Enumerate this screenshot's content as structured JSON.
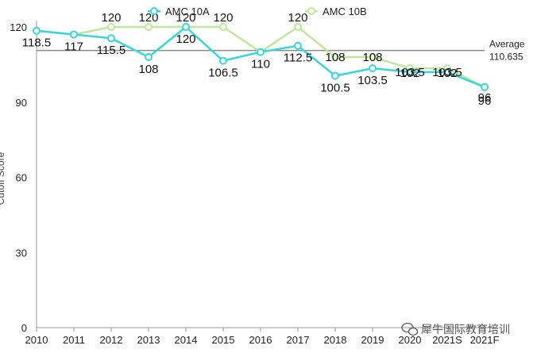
{
  "chart_data": {
    "type": "line",
    "categories": [
      "2010",
      "2011",
      "2012",
      "2013",
      "2014",
      "2015",
      "2016",
      "2017",
      "2018",
      "2019",
      "2020",
      "2021S",
      "2021F"
    ],
    "series": [
      {
        "name": "AMC 10A",
        "color": "#39d5dc",
        "values": [
          118.5,
          117,
          115.5,
          108,
          120,
          106.5,
          110,
          112.5,
          100.5,
          103.5,
          102,
          102,
          96
        ]
      },
      {
        "name": "AMC 10B",
        "color": "#bde79a",
        "values": [
          118.5,
          117,
          120,
          120,
          120,
          120,
          110,
          120,
          108,
          108,
          103.5,
          103.5,
          96
        ]
      }
    ],
    "average": {
      "label": "Average",
      "value": 110.635,
      "value_label": "110.635",
      "color": "#8a8a8a"
    },
    "ylim": [
      0,
      120
    ],
    "yticks": [
      0,
      30,
      60,
      90,
      120
    ],
    "ylabel": "Cutoff Score",
    "xlabel": "",
    "title": "",
    "grid": false,
    "legend": "top-center",
    "data_labels": [
      {
        "series": 0,
        "index": 0,
        "text": "118.5"
      },
      {
        "series": 0,
        "index": 1,
        "text": "117"
      },
      {
        "series": 0,
        "index": 2,
        "text": "115.5"
      },
      {
        "series": 0,
        "index": 3,
        "text": "108"
      },
      {
        "series": 0,
        "index": 4,
        "text": "120"
      },
      {
        "series": 0,
        "index": 5,
        "text": "106.5"
      },
      {
        "series": 0,
        "index": 6,
        "text": "110"
      },
      {
        "series": 0,
        "index": 7,
        "text": "112.5"
      },
      {
        "series": 0,
        "index": 8,
        "text": "100.5"
      },
      {
        "series": 0,
        "index": 9,
        "text": "103.5"
      },
      {
        "series": 0,
        "index": 10,
        "text": "102"
      },
      {
        "series": 0,
        "index": 11,
        "text": "102"
      },
      {
        "series": 0,
        "index": 12,
        "text": "96"
      },
      {
        "series": 1,
        "index": 2,
        "text": "120"
      },
      {
        "series": 1,
        "index": 3,
        "text": "120"
      },
      {
        "series": 1,
        "index": 4,
        "text": "120"
      },
      {
        "series": 1,
        "index": 5,
        "text": "120"
      },
      {
        "series": 1,
        "index": 7,
        "text": "120"
      },
      {
        "series": 1,
        "index": 8,
        "text": "108"
      },
      {
        "series": 1,
        "index": 9,
        "text": "108"
      },
      {
        "series": 1,
        "index": 10,
        "text": "103.5"
      },
      {
        "series": 1,
        "index": 11,
        "text": "103.5"
      },
      {
        "series": 1,
        "index": 12,
        "text": "96"
      }
    ]
  },
  "watermark": {
    "text": "犀牛国际教育培训",
    "icon": "wechat-icon"
  }
}
